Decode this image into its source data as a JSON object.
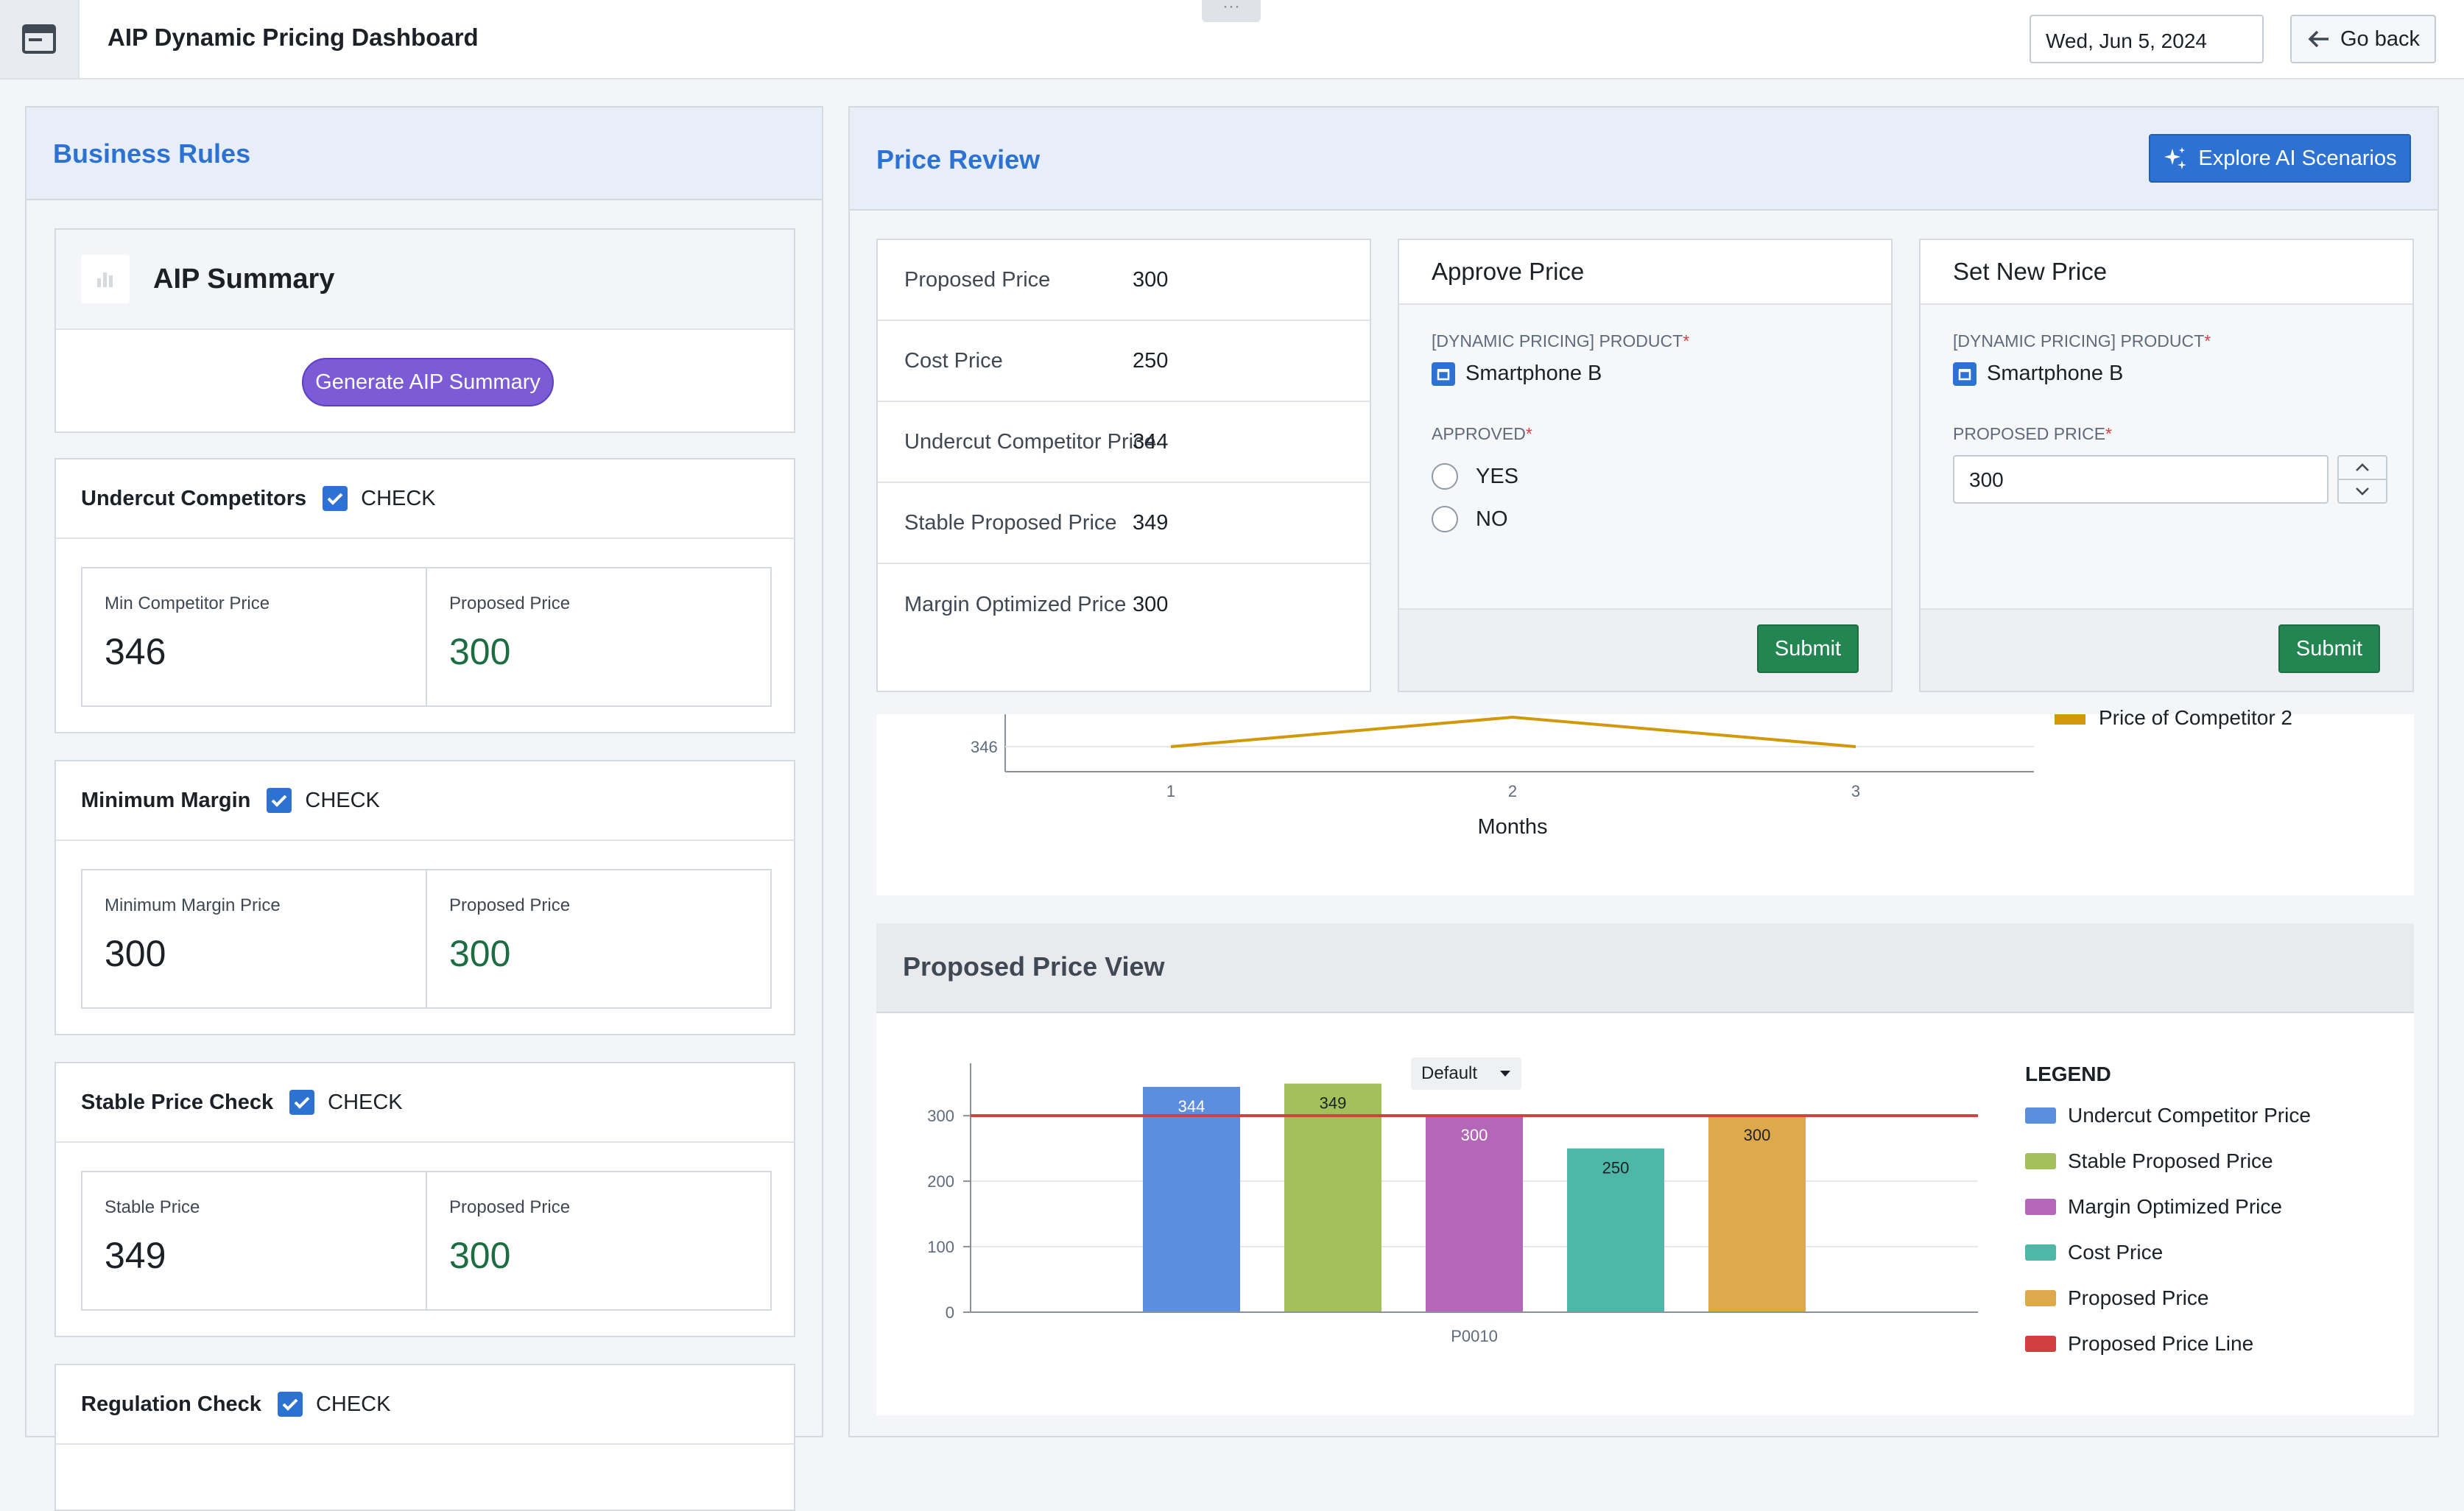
{
  "header": {
    "title": "AIP Dynamic Pricing Dashboard",
    "drag_handle": "···",
    "date": "Wed, Jun 5, 2024",
    "go_back": "Go back"
  },
  "business_rules": {
    "title": "Business Rules",
    "summary": {
      "title": "AIP Summary",
      "button": "Generate AIP Summary"
    },
    "check_label": "CHECK",
    "rules": [
      {
        "title": "Undercut Competitors",
        "checked": true,
        "left_label": "Min Competitor Price",
        "left_value": "346",
        "right_label": "Proposed Price",
        "right_value": "300"
      },
      {
        "title": "Minimum Margin",
        "checked": true,
        "left_label": "Minimum Margin Price",
        "left_value": "300",
        "right_label": "Proposed Price",
        "right_value": "300"
      },
      {
        "title": "Stable Price Check",
        "checked": true,
        "left_label": "Stable Price",
        "left_value": "349",
        "right_label": "Proposed Price",
        "right_value": "300"
      },
      {
        "title": "Regulation Check",
        "checked": true
      }
    ]
  },
  "price_review": {
    "title": "Price Review",
    "explore_button": "Explore AI Scenarios",
    "prices": [
      {
        "label": "Proposed Price",
        "value": "300"
      },
      {
        "label": "Cost Price",
        "value": "250"
      },
      {
        "label": "Undercut Competitor Price",
        "value": "344"
      },
      {
        "label": "Stable Proposed Price",
        "value": "349"
      },
      {
        "label": "Margin Optimized Price",
        "value": "300"
      }
    ],
    "approve": {
      "title": "Approve Price",
      "product_label": "[DYNAMIC PRICING] PRODUCT",
      "product": "Smartphone B",
      "approved_label": "APPROVED",
      "options": [
        "YES",
        "NO"
      ],
      "submit": "Submit"
    },
    "set_price": {
      "title": "Set New Price",
      "product_label": "[DYNAMIC PRICING] PRODUCT",
      "product": "Smartphone B",
      "price_label": "PROPOSED PRICE",
      "price_value": "300",
      "submit": "Submit"
    }
  },
  "line_chart": {
    "xlabel": "Months",
    "ytick": "346",
    "xticks": [
      "1",
      "2",
      "3"
    ],
    "legend_visible": "Price of Competitor 2"
  },
  "bar_view": {
    "title": "Proposed Price View",
    "legend_title": "LEGEND",
    "legend_dropdown": "Default"
  },
  "chart_data": [
    {
      "type": "line",
      "x": [
        1,
        2,
        3
      ],
      "xlabel": "Months",
      "series": [
        {
          "name": "Price of Competitor 2",
          "values": [
            346,
            351,
            346
          ],
          "color": "#d1980b"
        }
      ],
      "ylim": [
        342,
        351
      ],
      "legend": "right"
    },
    {
      "type": "bar",
      "title": "Proposed Price View",
      "categories": [
        "P0010"
      ],
      "ylim": [
        0,
        380
      ],
      "yticks": [
        0,
        100,
        200,
        300
      ],
      "series": [
        {
          "name": "Undercut Competitor Price",
          "values": [
            344
          ],
          "color": "#5b8fde"
        },
        {
          "name": "Stable Proposed Price",
          "values": [
            349
          ],
          "color": "#a2c15a"
        },
        {
          "name": "Margin Optimized Price",
          "values": [
            300
          ],
          "color": "#b466b9"
        },
        {
          "name": "Cost Price",
          "values": [
            250
          ],
          "color": "#4db8a8"
        },
        {
          "name": "Proposed Price",
          "values": [
            300
          ],
          "color": "#dea94a"
        }
      ],
      "reference_line": {
        "name": "Proposed Price Line",
        "value": 300,
        "color": "#d13f3f"
      },
      "grid": true,
      "legend": "right"
    }
  ]
}
